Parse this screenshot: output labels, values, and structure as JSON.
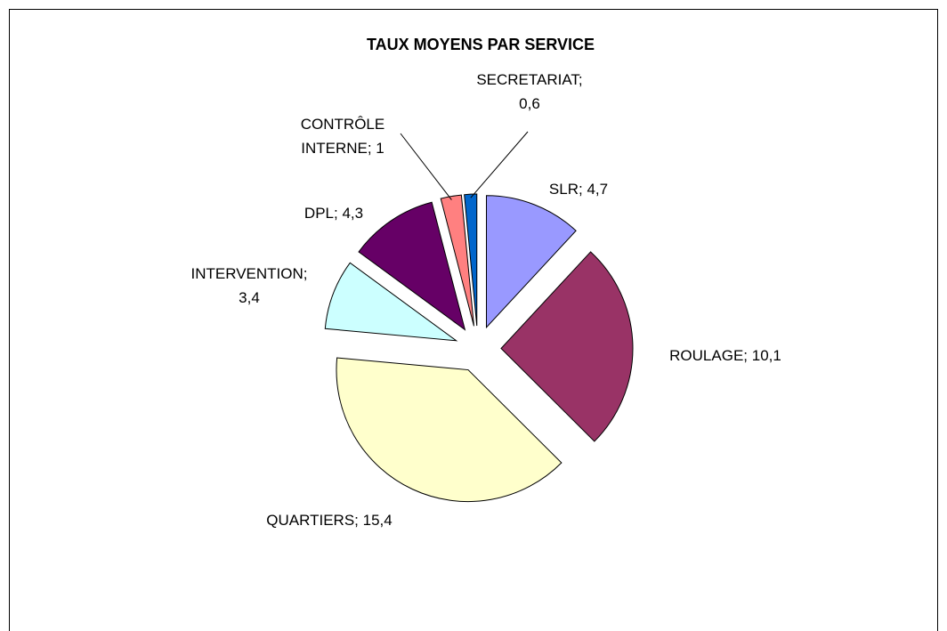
{
  "chart_data": {
    "type": "pie",
    "title": "TAUX MOYENS PAR SERVICE",
    "values": [
      4.7,
      10.1,
      15.4,
      3.4,
      4.3,
      1,
      0.6
    ],
    "value_labels": [
      [
        "SLR; 4,7"
      ],
      [
        "ROULAGE; 10,1"
      ],
      [
        "QUARTIERS; 15,4"
      ],
      [
        "INTERVENTION;",
        "3,4"
      ],
      [
        "DPL; 4,3"
      ],
      [
        "CONTRÔLE",
        "INTERNE; 1"
      ],
      [
        "SECRETARIAT;",
        "0,6"
      ]
    ],
    "colors": [
      "#9999ff",
      "#993366",
      "#ffffcc",
      "#ccffff",
      "#660066",
      "#ff8080",
      "#0066cc"
    ]
  }
}
